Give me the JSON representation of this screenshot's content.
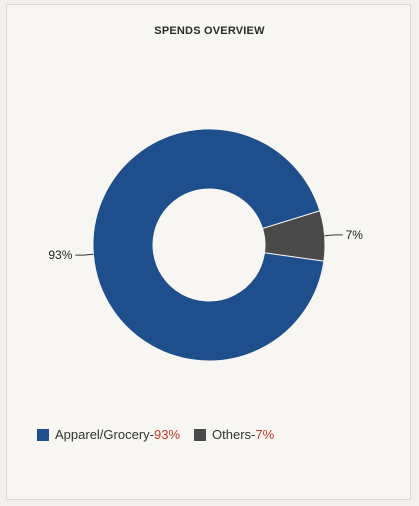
{
  "title": "SPENDS OVERVIEW",
  "chart_data": {
    "type": "pie",
    "donut": true,
    "title": "SPENDS OVERVIEW",
    "slices": [
      {
        "name": "Apparel/Grocery",
        "value": 93,
        "label": "93%",
        "color": "#1f4e8c"
      },
      {
        "name": "Others",
        "value": 7,
        "label": "7%",
        "color": "#4a4a4a"
      }
    ],
    "legend_placement": "bottom-left"
  },
  "legend": [
    {
      "name": "Apparel/Grocery",
      "sep": "-",
      "pct": "93%",
      "color": "#1f4e8c"
    },
    {
      "name": "Others",
      "sep": "-",
      "pct": "7%",
      "color": "#4a4a4a"
    }
  ]
}
